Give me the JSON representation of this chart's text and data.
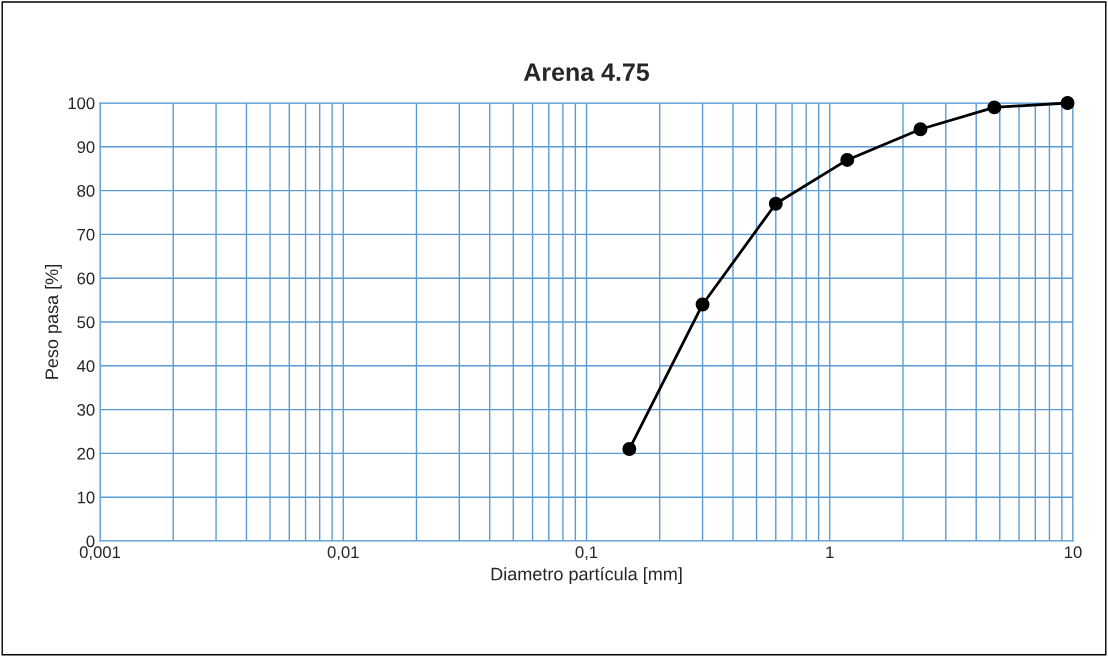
{
  "chart_data": {
    "type": "line",
    "title": "Arena 4.75",
    "xlabel": "Diametro partícula [mm]",
    "ylabel": "Peso pasa [%]",
    "x": [
      0.15,
      0.3,
      0.6,
      1.18,
      2.36,
      4.75,
      9.5
    ],
    "series": [
      {
        "color": "#000000",
        "values": [
          21,
          54,
          77,
          87,
          94,
          99,
          100
        ]
      }
    ],
    "log": "x",
    "xlim": [
      0.001,
      10
    ],
    "xticks": [
      {
        "value": 0.001,
        "label": "0,001"
      },
      {
        "value": 0.01,
        "label": "0,01"
      },
      {
        "value": 0.1,
        "label": "0,1"
      },
      1,
      10
    ],
    "ylim": [
      0,
      100
    ],
    "yticks": [
      0,
      10,
      20,
      30,
      40,
      50,
      60,
      70,
      80,
      90,
      100
    ],
    "grid": true,
    "marker": "circle",
    "line_style": "solid",
    "legend": false
  }
}
